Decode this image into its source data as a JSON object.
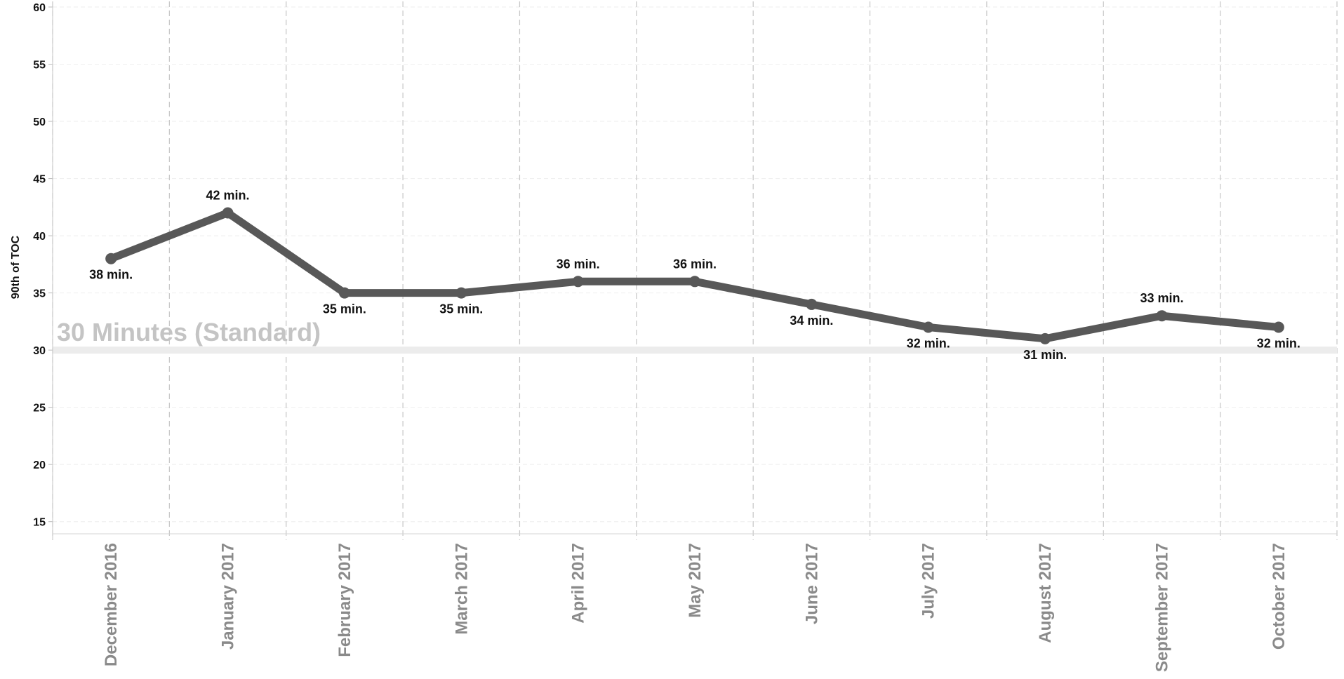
{
  "chart_data": {
    "type": "line",
    "ylabel": "90th of TOC",
    "xlabel": "",
    "categories": [
      "December 2016",
      "January 2017",
      "February 2017",
      "March 2017",
      "April 2017",
      "May 2017",
      "June 2017",
      "July 2017",
      "August 2017",
      "September 2017",
      "October 2017"
    ],
    "series": [
      {
        "values": [
          38,
          42,
          35,
          35,
          36,
          36,
          34,
          32,
          31,
          33,
          32
        ],
        "labels": [
          "38 min.",
          "42 min.",
          "35 min.",
          "35 min.",
          "36 min.",
          "36 min.",
          "34 min.",
          "32 min.",
          "31 min.",
          "33 min.",
          "32 min."
        ]
      }
    ],
    "label_positions": [
      "below",
      "above",
      "below",
      "below",
      "above",
      "above",
      "below",
      "below",
      "below",
      "above",
      "below"
    ],
    "ylim": [
      14,
      60
    ],
    "yticks": [
      15,
      20,
      25,
      30,
      35,
      40,
      45,
      50,
      55,
      60
    ],
    "grid": true,
    "reference_line": {
      "value": 30,
      "label": "30 Minutes (Standard)",
      "color": "#ececec",
      "label_color": "#c4c4c4"
    },
    "line_color": "#585858"
  }
}
